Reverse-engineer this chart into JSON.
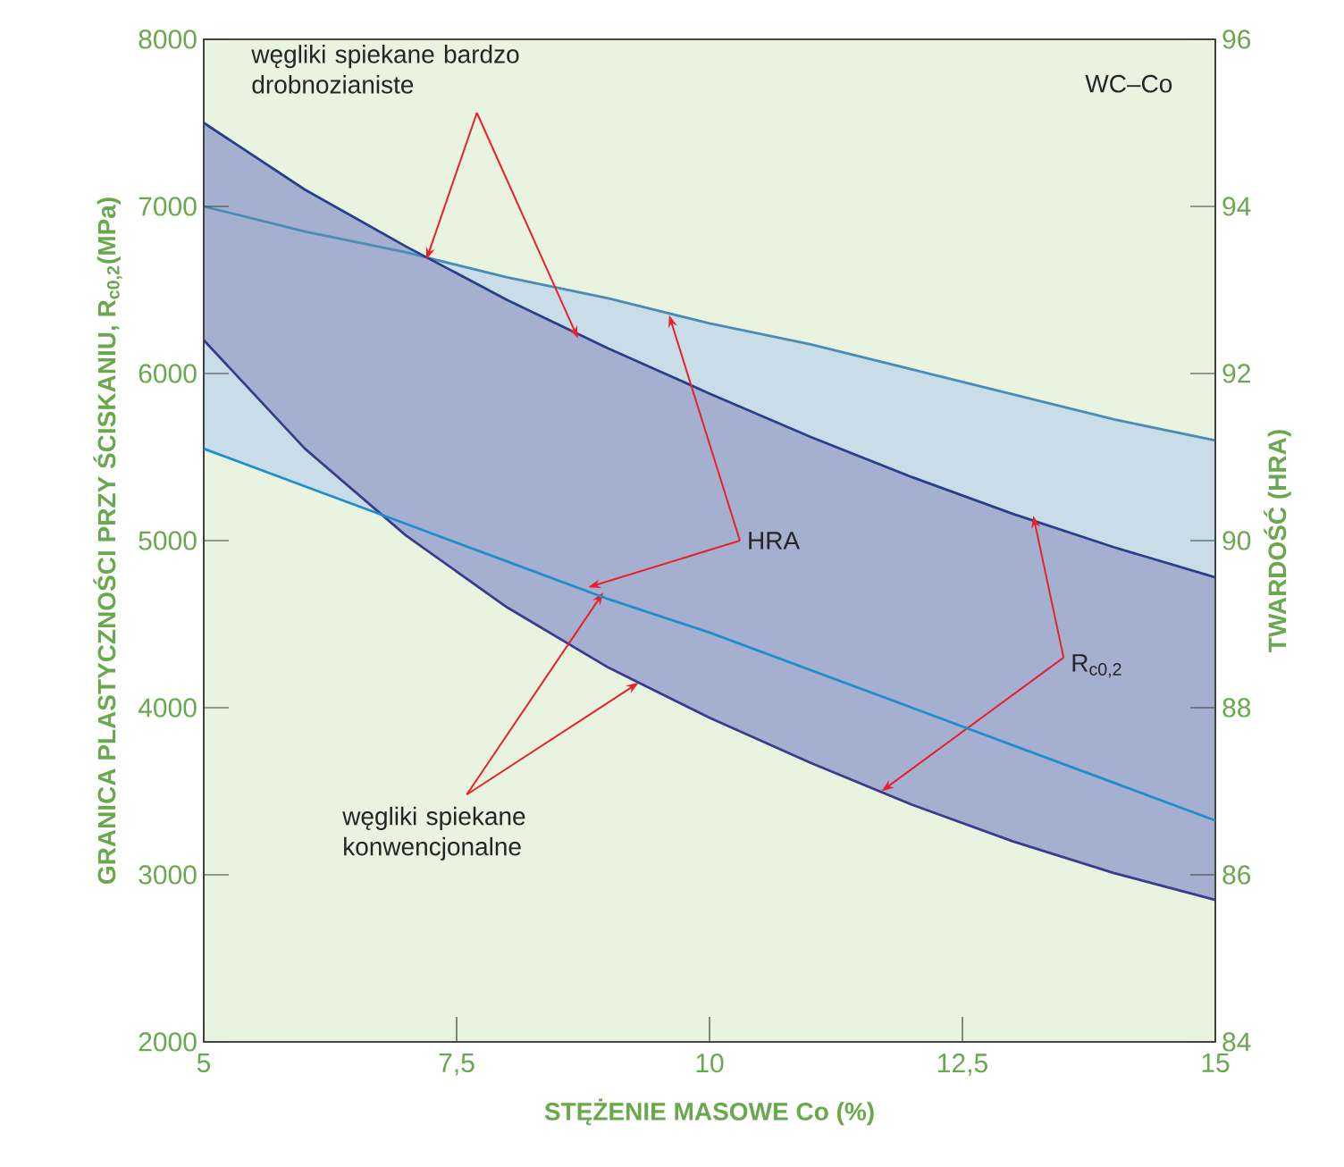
{
  "chart_data": {
    "type": "line",
    "xlabel": "STĘŻENIE MASOWE Co (%)",
    "ylabel": "GRANICA PLASTYCZNOŚCI PRZY ŚCISKANIU, R$_{c0,2}$(MPa)",
    "y2label": "TWARDOŚĆ (HRA)",
    "x": [
      5,
      6,
      7,
      8,
      9,
      10,
      11,
      12,
      13,
      14,
      15
    ],
    "xlim": [
      5,
      15
    ],
    "xticks": [
      5,
      {
        "value": 7.5,
        "label": "7,5"
      },
      10,
      {
        "value": 12.5,
        "label": "12,5"
      },
      15
    ],
    "ylim": [
      2000,
      8000
    ],
    "yticks": [
      2000,
      3000,
      4000,
      5000,
      6000,
      7000,
      8000
    ],
    "y2lim": [
      84,
      96
    ],
    "y2ticks": [
      84,
      86,
      88,
      90,
      92,
      94,
      96
    ],
    "series": [
      {
        "axis": "y2",
        "color": "#4b8cb4",
        "values": [
          94.0,
          93.7,
          93.45,
          93.15,
          92.9,
          92.6,
          92.35,
          92.05,
          91.75,
          91.45,
          91.2
        ],
        "lower": [
          91.1,
          90.65,
          90.2,
          89.75,
          89.3,
          88.9,
          88.45,
          88.0,
          87.55,
          87.1,
          86.65
        ],
        "upper": [
          94.0,
          93.7,
          93.45,
          93.15,
          92.9,
          92.6,
          92.35,
          92.05,
          91.75,
          91.45,
          91.2
        ]
      },
      {
        "axis": "y",
        "color": "#28408c",
        "values": [
          7500,
          7100,
          6760,
          6440,
          6150,
          5880,
          5620,
          5380,
          5160,
          4960,
          4780
        ],
        "lower": [
          6200,
          5550,
          5030,
          4600,
          4240,
          3940,
          3670,
          3420,
          3200,
          3010,
          2850
        ],
        "upper": [
          7500,
          7100,
          6760,
          6440,
          6150,
          5880,
          5620,
          5380,
          5160,
          4960,
          4780
        ]
      },
      {
        "axis": "y",
        "color": "#3a3d8c",
        "values": [
          6200,
          5550,
          5030,
          4600,
          4240,
          3940,
          3670,
          3420,
          3200,
          3010,
          2850
        ]
      },
      {
        "axis": "y2",
        "color": "#1f8fcc",
        "values": [
          91.1,
          90.65,
          90.2,
          89.75,
          89.3,
          88.9,
          88.45,
          88.0,
          87.55,
          87.1,
          86.65
        ]
      }
    ],
    "annotations": [
      "WC–Co",
      {
        "text": "węgliki spiekane bardzo drobnozianiste",
        "x": 7.2,
        "y": 6680
      },
      {
        "text": "HRA",
        "x": 9.6,
        "y": 6350
      },
      {
        "text": "R$_{c0,2}$",
        "x": 13.2,
        "y": 5150
      },
      {
        "text": "węgliki spiekane konwencjonalne",
        "x": 8.95,
        "y": 4690
      }
    ]
  }
}
